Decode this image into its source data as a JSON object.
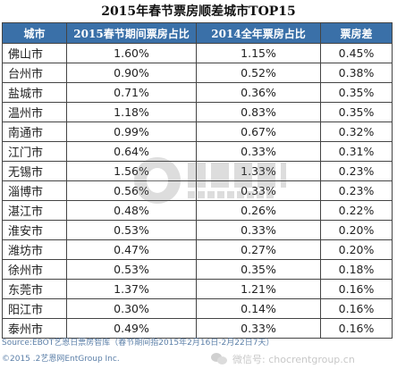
{
  "title": "2015年春节票房顺差城市TOP15",
  "table": {
    "headers": [
      "城市",
      "2015春节期间票房占比",
      "2014全年票房占比",
      "票房差"
    ],
    "rows": [
      [
        "佛山市",
        "1.60%",
        "1.15%",
        "0.45%"
      ],
      [
        "台州市",
        "0.90%",
        "0.52%",
        "0.38%"
      ],
      [
        "盐城市",
        "0.71%",
        "0.36%",
        "0.35%"
      ],
      [
        "温州市",
        "1.18%",
        "0.83%",
        "0.35%"
      ],
      [
        "南通市",
        "0.99%",
        "0.67%",
        "0.32%"
      ],
      [
        "江门市",
        "0.64%",
        "0.33%",
        "0.31%"
      ],
      [
        "无锡市",
        "1.56%",
        "1.33%",
        "0.23%"
      ],
      [
        "淄博市",
        "0.56%",
        "0.33%",
        "0.23%"
      ],
      [
        "湛江市",
        "0.48%",
        "0.26%",
        "0.22%"
      ],
      [
        "淮安市",
        "0.53%",
        "0.33%",
        "0.20%"
      ],
      [
        "潍坊市",
        "0.47%",
        "0.27%",
        "0.20%"
      ],
      [
        "徐州市",
        "0.53%",
        "0.35%",
        "0.18%"
      ],
      [
        "东莞市",
        "1.37%",
        "1.21%",
        "0.16%"
      ],
      [
        "阳江市",
        "0.30%",
        "0.14%",
        "0.16%"
      ],
      [
        "泰州市",
        "0.49%",
        "0.33%",
        "0.16%"
      ]
    ]
  },
  "footer": {
    "source": "Source:EBOT艺恩日票房智库（春节期间指2015年2月16日-2月22日7天）",
    "copyright": "©2015 .2艺恩网EntGroup Inc."
  },
  "wechat_watermark": "微信号: chocrentgroup.cn",
  "colors": {
    "header_bg": "#3a70a8",
    "header_text": "#ffffff",
    "border": "#444444"
  }
}
